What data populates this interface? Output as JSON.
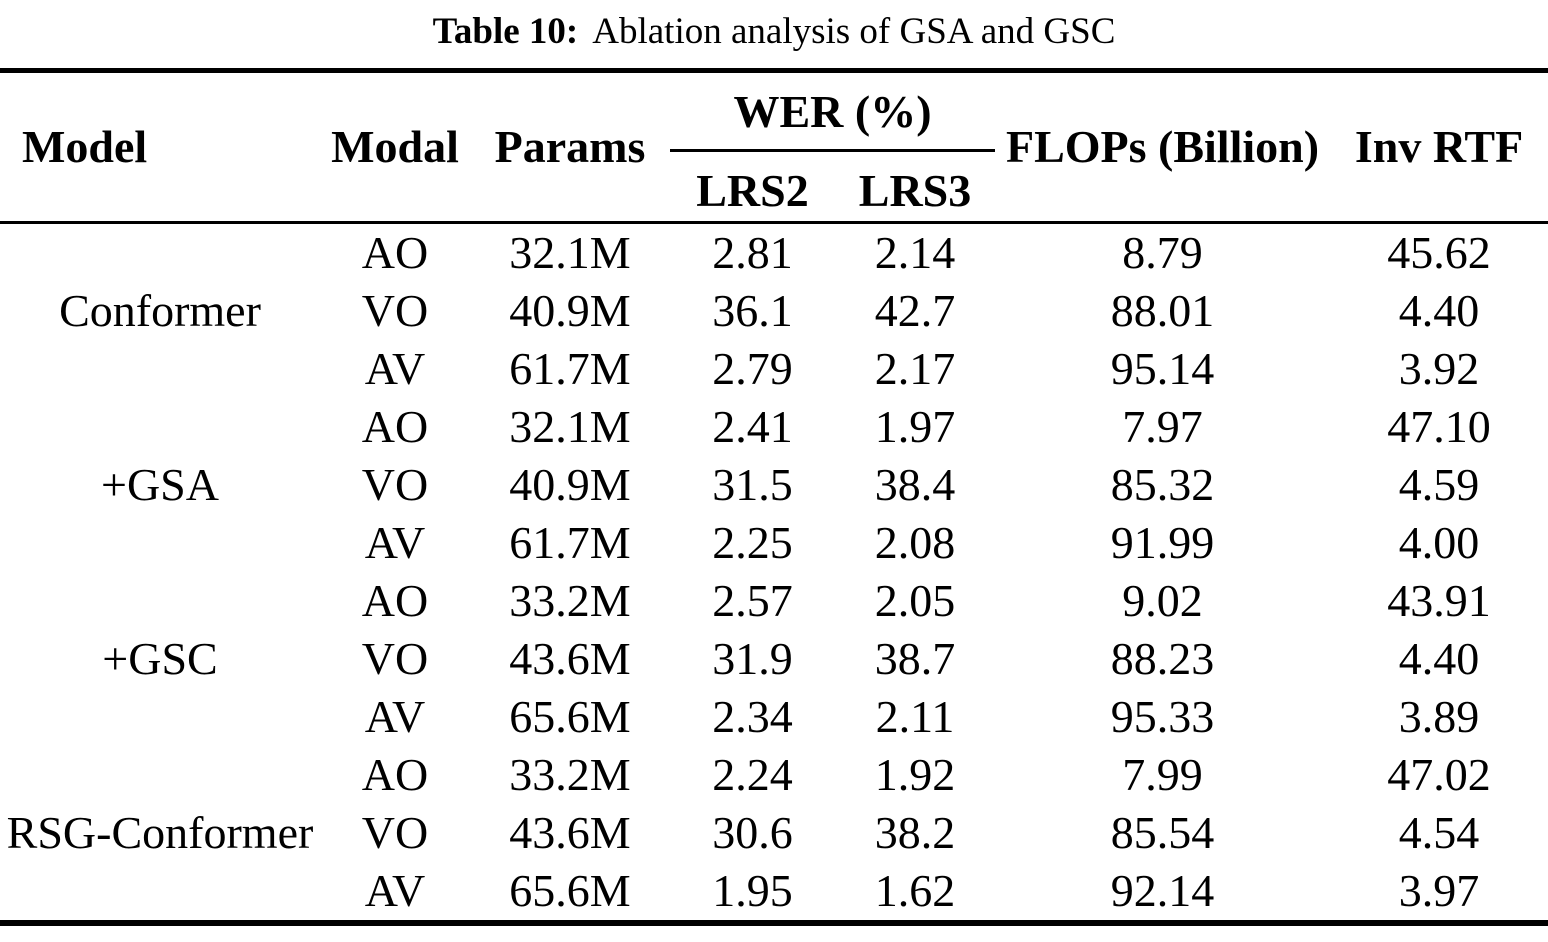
{
  "caption": {
    "label": "Table 10:",
    "text": "Ablation analysis of GSA and GSC"
  },
  "table": {
    "headers": {
      "model": "Model",
      "modal": "Modal",
      "params": "Params",
      "wer": "WER (%)",
      "lrs2": "LRS2",
      "lrs3": "LRS3",
      "flops": "FLOPs (Billion)",
      "inv_rtf": "Inv RTF"
    },
    "groups": [
      {
        "model": "Conformer",
        "rows": [
          {
            "modal": "AO",
            "params": "32.1M",
            "lrs2": "2.81",
            "lrs3": "2.14",
            "flops": "8.79",
            "inv_rtf": "45.62"
          },
          {
            "modal": "VO",
            "params": "40.9M",
            "lrs2": "36.1",
            "lrs3": "42.7",
            "flops": "88.01",
            "inv_rtf": "4.40"
          },
          {
            "modal": "AV",
            "params": "61.7M",
            "lrs2": "2.79",
            "lrs3": "2.17",
            "flops": "95.14",
            "inv_rtf": "3.92"
          }
        ]
      },
      {
        "model": "+GSA",
        "rows": [
          {
            "modal": "AO",
            "params": "32.1M",
            "lrs2": "2.41",
            "lrs3": "1.97",
            "flops": "7.97",
            "inv_rtf": "47.10"
          },
          {
            "modal": "VO",
            "params": "40.9M",
            "lrs2": "31.5",
            "lrs3": "38.4",
            "flops": "85.32",
            "inv_rtf": "4.59"
          },
          {
            "modal": "AV",
            "params": "61.7M",
            "lrs2": "2.25",
            "lrs3": "2.08",
            "flops": "91.99",
            "inv_rtf": "4.00"
          }
        ]
      },
      {
        "model": "+GSC",
        "rows": [
          {
            "modal": "AO",
            "params": "33.2M",
            "lrs2": "2.57",
            "lrs3": "2.05",
            "flops": "9.02",
            "inv_rtf": "43.91"
          },
          {
            "modal": "VO",
            "params": "43.6M",
            "lrs2": "31.9",
            "lrs3": "38.7",
            "flops": "88.23",
            "inv_rtf": "4.40"
          },
          {
            "modal": "AV",
            "params": "65.6M",
            "lrs2": "2.34",
            "lrs3": "2.11",
            "flops": "95.33",
            "inv_rtf": "3.89"
          }
        ]
      },
      {
        "model": "RSG-Conformer",
        "rows": [
          {
            "modal": "AO",
            "params": "33.2M",
            "lrs2": "2.24",
            "lrs3": "1.92",
            "flops": "7.99",
            "inv_rtf": "47.02"
          },
          {
            "modal": "VO",
            "params": "43.6M",
            "lrs2": "30.6",
            "lrs3": "38.2",
            "flops": "85.54",
            "inv_rtf": "4.54"
          },
          {
            "modal": "AV",
            "params": "65.6M",
            "lrs2": "1.95",
            "lrs3": "1.62",
            "flops": "92.14",
            "inv_rtf": "3.97"
          }
        ]
      }
    ]
  }
}
